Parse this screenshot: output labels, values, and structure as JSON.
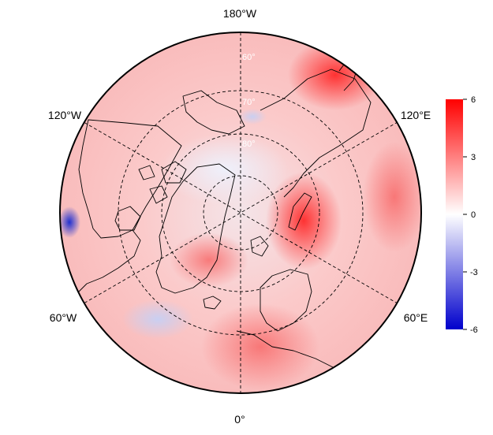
{
  "map": {
    "projection": "north polar stereographic",
    "lon_labels": {
      "top": "180°W",
      "bottom": "0°",
      "upper_left": "120°W",
      "upper_right": "120°E",
      "lower_left": "60°W",
      "lower_right": "60°E"
    },
    "lat_labels": [
      "60°",
      "70°",
      "80°"
    ]
  },
  "colorbar": {
    "ticks": [
      "6",
      "3",
      "0",
      "-3",
      "-6"
    ],
    "min": -6,
    "max": 6,
    "colors": {
      "high": "#ff0000",
      "mid": "#ffffff",
      "low": "#0000cc"
    }
  },
  "anomaly_regions": [
    {
      "sign": "positive",
      "value": 5.5,
      "region": "eastern Siberia / Chukotka"
    },
    {
      "sign": "positive",
      "value": 4.5,
      "region": "Barents-Kara Sea"
    },
    {
      "sign": "positive",
      "value": 3.5,
      "region": "Greenland"
    },
    {
      "sign": "negative",
      "value": -1.5,
      "region": "central Arctic Ocean"
    },
    {
      "sign": "negative",
      "value": -5,
      "region": "Pacific Northwest coast"
    },
    {
      "sign": "negative",
      "value": -1.5,
      "region": "North Atlantic south of Greenland"
    }
  ]
}
